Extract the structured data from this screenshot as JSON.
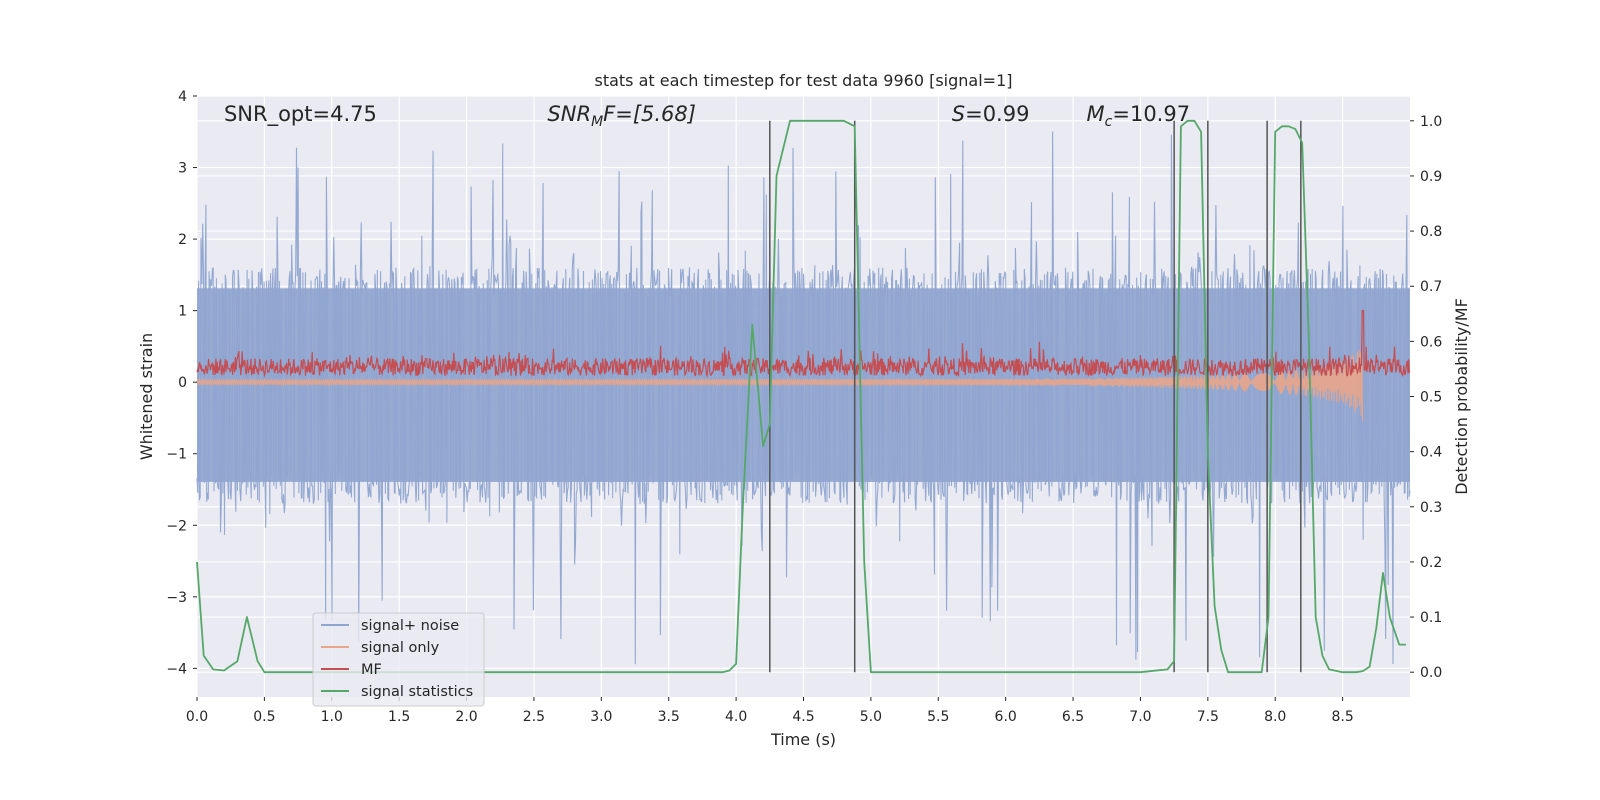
{
  "chart_data": {
    "type": "line",
    "title": "stats at each timestep for test data 9960 [signal=1]",
    "xlabel": "Time (s)",
    "ylabel": "Whitened strain",
    "ylabel_right": "Detection probability/MF",
    "xlim": [
      0.0,
      9.0
    ],
    "ylim": [
      -4.4,
      4.0
    ],
    "ylim_right": [
      -0.045,
      1.045
    ],
    "x_ticks": [
      0.0,
      0.5,
      1.0,
      1.5,
      2.0,
      2.5,
      3.0,
      3.5,
      4.0,
      4.5,
      5.0,
      5.5,
      6.0,
      6.5,
      7.0,
      7.5,
      8.0,
      8.5
    ],
    "x_tick_labels": [
      "0.0",
      "0.5",
      "1.0",
      "1.5",
      "2.0",
      "2.5",
      "3.0",
      "3.5",
      "4.0",
      "4.5",
      "5.0",
      "5.5",
      "6.0",
      "6.5",
      "7.0",
      "7.5",
      "8.0",
      "8.5"
    ],
    "y_ticks": [
      -4,
      -3,
      -2,
      -1,
      0,
      1,
      2,
      3,
      4
    ],
    "y_tick_labels": [
      "−4",
      "−3",
      "−2",
      "−1",
      "0",
      "1",
      "2",
      "3",
      "4"
    ],
    "y_ticks_right": [
      0.0,
      0.1,
      0.2,
      0.3,
      0.4,
      0.5,
      0.6,
      0.7,
      0.8,
      0.9,
      1.0
    ],
    "y_tick_labels_right": [
      "0.0",
      "0.1",
      "0.2",
      "0.3",
      "0.4",
      "0.5",
      "0.6",
      "0.7",
      "0.8",
      "0.9",
      "1.0"
    ],
    "grid": true,
    "legend_position": "lower-left",
    "annotations": {
      "snr_opt": "SNR_opt=4.75",
      "snr_mf_sym": "SNR",
      "snr_mf_sub": "M",
      "snr_mf_rest": "F=[5.68]",
      "s_sym": "S",
      "s_rest": "=0.99",
      "mc_sym": "M",
      "mc_sub": "c",
      "mc_rest": "=10.97"
    },
    "series": [
      {
        "name": "signal+ noise",
        "color": "#8fa5cf",
        "axis": "left",
        "envelope_upper": 1.6,
        "envelope_lower": -1.7,
        "peak_max": 3.6,
        "peak_min": -4.0
      },
      {
        "name": "signal only",
        "color": "#e8a58a",
        "axis": "left",
        "x": [
          0.0,
          6.5,
          7.0,
          7.5,
          8.0,
          8.3,
          8.5,
          8.62,
          8.65
        ],
        "amplitude": [
          0.04,
          0.05,
          0.07,
          0.1,
          0.15,
          0.22,
          0.3,
          0.45,
          0.55
        ]
      },
      {
        "name": "MF",
        "color": "#c44e52",
        "axis": "left",
        "baseline": 0.2,
        "spread": 0.35,
        "spike_x": 8.65,
        "spike_y": 1.0
      },
      {
        "name": "signal statistics",
        "color": "#55a868",
        "axis": "right",
        "x": [
          0.0,
          0.05,
          0.12,
          0.2,
          0.3,
          0.37,
          0.45,
          0.5,
          1.0,
          2.0,
          3.0,
          3.5,
          3.9,
          3.95,
          4.0,
          4.05,
          4.12,
          4.2,
          4.25,
          4.3,
          4.4,
          4.5,
          4.6,
          4.7,
          4.8,
          4.88,
          4.95,
          5.0,
          5.5,
          6.0,
          6.5,
          7.0,
          7.2,
          7.25,
          7.3,
          7.35,
          7.4,
          7.45,
          7.5,
          7.55,
          7.6,
          7.65,
          7.8,
          7.9,
          7.95,
          8.0,
          8.05,
          8.1,
          8.15,
          8.2,
          8.25,
          8.3,
          8.35,
          8.4,
          8.5,
          8.6,
          8.65,
          8.7,
          8.75,
          8.8,
          8.85,
          8.92,
          8.97
        ],
        "y": [
          0.2,
          0.03,
          0.005,
          0.003,
          0.02,
          0.1,
          0.02,
          0.0,
          0.0,
          0.0,
          0.0,
          0.0,
          0.0,
          0.003,
          0.015,
          0.3,
          0.63,
          0.41,
          0.45,
          0.9,
          1.0,
          1.0,
          1.0,
          1.0,
          1.0,
          0.99,
          0.2,
          0.0,
          0.0,
          0.0,
          0.0,
          0.0,
          0.005,
          0.02,
          0.99,
          1.0,
          1.0,
          0.98,
          0.4,
          0.12,
          0.04,
          0.0,
          0.0,
          0.0,
          0.1,
          0.98,
          0.99,
          0.99,
          0.985,
          0.96,
          0.6,
          0.1,
          0.03,
          0.005,
          0.0,
          0.0,
          0.002,
          0.01,
          0.08,
          0.18,
          0.1,
          0.05,
          0.05
        ]
      }
    ],
    "vertical_lines_x": [
      4.25,
      4.88,
      7.25,
      7.5,
      7.94,
      8.19
    ],
    "vertical_lines_range_right": [
      0.0,
      1.0
    ]
  }
}
